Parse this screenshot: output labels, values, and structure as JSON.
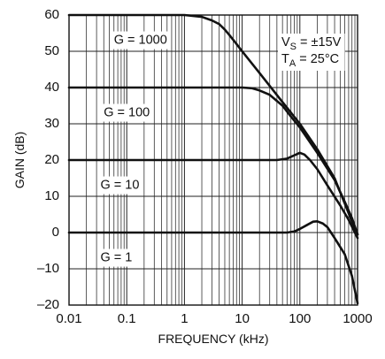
{
  "chart_data": {
    "type": "line",
    "title": "",
    "xlabel": "FREQUENCY (kHz)",
    "ylabel": "GAIN (dB)",
    "xscale": "log",
    "xlim": [
      0.01,
      1000
    ],
    "ylim": [
      -20,
      60
    ],
    "grid": true,
    "x_ticks": [
      {
        "value": 0.01,
        "label": "0.01"
      },
      {
        "value": 0.1,
        "label": "0.1"
      },
      {
        "value": 1,
        "label": "1"
      },
      {
        "value": 10,
        "label": "10"
      },
      {
        "value": 100,
        "label": "100"
      },
      {
        "value": 1000,
        "label": "1000"
      }
    ],
    "y_ticks": [
      {
        "value": 60,
        "label": "60"
      },
      {
        "value": 50,
        "label": "50"
      },
      {
        "value": 40,
        "label": "40"
      },
      {
        "value": 30,
        "label": "30"
      },
      {
        "value": 20,
        "label": "20"
      },
      {
        "value": 10,
        "label": "10"
      },
      {
        "value": 0,
        "label": "0"
      },
      {
        "value": -10,
        "label": "–10"
      },
      {
        "value": -20,
        "label": "–20"
      }
    ],
    "series": [
      {
        "name": "G = 1000",
        "points": [
          [
            0.01,
            60
          ],
          [
            1,
            60
          ],
          [
            2,
            59.5
          ],
          [
            3,
            58.5
          ],
          [
            4,
            57.5
          ],
          [
            5,
            56
          ],
          [
            6,
            54.5
          ],
          [
            8,
            52
          ],
          [
            10,
            50
          ],
          [
            20,
            44
          ],
          [
            50,
            36
          ],
          [
            100,
            30
          ],
          [
            200,
            23
          ],
          [
            400,
            15
          ],
          [
            600,
            8
          ],
          [
            800,
            3
          ],
          [
            1000,
            -0.5
          ]
        ]
      },
      {
        "name": "G = 100",
        "points": [
          [
            0.01,
            40
          ],
          [
            10,
            40
          ],
          [
            15,
            39.8
          ],
          [
            20,
            39.2
          ],
          [
            30,
            38
          ],
          [
            50,
            35
          ],
          [
            70,
            32
          ],
          [
            100,
            29
          ],
          [
            200,
            22
          ],
          [
            400,
            14.5
          ],
          [
            600,
            8.5
          ],
          [
            800,
            4
          ],
          [
            1000,
            -0.5
          ]
        ]
      },
      {
        "name": "G = 10",
        "points": [
          [
            0.01,
            20
          ],
          [
            40,
            20
          ],
          [
            60,
            20.4
          ],
          [
            80,
            21.3
          ],
          [
            100,
            22
          ],
          [
            120,
            21.5
          ],
          [
            150,
            20
          ],
          [
            200,
            17.5
          ],
          [
            300,
            13
          ],
          [
            500,
            7.5
          ],
          [
            700,
            3.5
          ],
          [
            1000,
            -1.5
          ]
        ]
      },
      {
        "name": "G = 1",
        "points": [
          [
            0.01,
            0
          ],
          [
            60,
            0
          ],
          [
            80,
            0.3
          ],
          [
            100,
            1
          ],
          [
            130,
            2
          ],
          [
            170,
            3
          ],
          [
            200,
            3.1
          ],
          [
            250,
            2.5
          ],
          [
            300,
            1.5
          ],
          [
            400,
            -1.5
          ],
          [
            600,
            -6
          ],
          [
            800,
            -12
          ],
          [
            1000,
            -19.5
          ]
        ]
      }
    ],
    "annotations": [
      {
        "text": "G = 1000",
        "x": 0.06,
        "y": 53
      },
      {
        "text": "G = 100",
        "x": 0.04,
        "y": 33
      },
      {
        "text": "G = 10",
        "x": 0.035,
        "y": 13
      },
      {
        "text": "G = 1",
        "x": 0.035,
        "y": -7
      }
    ],
    "conditions": {
      "line1_main": "V",
      "line1_sub": "S",
      "line1_rest": " = ±15V",
      "line2_main": "T",
      "line2_sub": "A",
      "line2_rest": " = 25°C"
    }
  }
}
